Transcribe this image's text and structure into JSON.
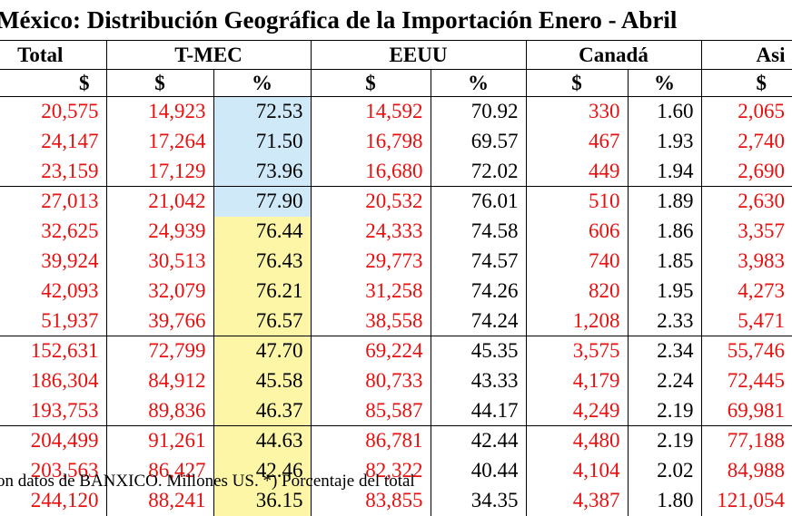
{
  "title": "México: Distribución Geográfica de la Importación Enero - Abril",
  "headers": {
    "total": "Total",
    "tmec": "T-MEC",
    "eeuu": "EEUU",
    "canada": "Canadá",
    "asia": "Asi"
  },
  "subheaders": [
    "$",
    "$",
    "%",
    "$",
    "%",
    "$",
    "%",
    "$"
  ],
  "rows": [
    [
      "20,575",
      "14,923",
      "72.53",
      "14,592",
      "70.92",
      "330",
      "1.60",
      "2,065"
    ],
    [
      "24,147",
      "17,264",
      "71.50",
      "16,798",
      "69.57",
      "467",
      "1.93",
      "2,740"
    ],
    [
      "23,159",
      "17,129",
      "73.96",
      "16,680",
      "72.02",
      "449",
      "1.94",
      "2,690"
    ],
    [
      "27,013",
      "21,042",
      "77.90",
      "20,532",
      "76.01",
      "510",
      "1.89",
      "2,630"
    ],
    [
      "32,625",
      "24,939",
      "76.44",
      "24,333",
      "74.58",
      "606",
      "1.86",
      "3,357"
    ],
    [
      "39,924",
      "30,513",
      "76.43",
      "29,773",
      "74.57",
      "740",
      "1.85",
      "3,983"
    ],
    [
      "42,093",
      "32,079",
      "76.21",
      "31,258",
      "74.26",
      "820",
      "1.95",
      "4,273"
    ],
    [
      "51,937",
      "39,766",
      "76.57",
      "38,558",
      "74.24",
      "1,208",
      "2.33",
      "5,471"
    ],
    [
      "152,631",
      "72,799",
      "47.70",
      "69,224",
      "45.35",
      "3,575",
      "2.34",
      "55,746"
    ],
    [
      "186,304",
      "84,912",
      "45.58",
      "80,733",
      "43.33",
      "4,179",
      "2.24",
      "72,445"
    ],
    [
      "193,753",
      "89,836",
      "46.37",
      "85,587",
      "44.17",
      "4,249",
      "2.19",
      "69,981"
    ],
    [
      "204,499",
      "91,261",
      "44.63",
      "86,781",
      "42.44",
      "4,480",
      "2.19",
      "77,188"
    ],
    [
      "203,563",
      "86,427",
      "42.46",
      "82,322",
      "40.44",
      "4,104",
      "2.02",
      "84,988"
    ],
    [
      "244,120",
      "88,241",
      "36.15",
      "83,855",
      "34.35",
      "4,387",
      "1.80",
      "121,054"
    ]
  ],
  "colors": {
    "money": "#e8100f",
    "blue_cell": "#cfe9f8",
    "yellow_cell": "#fcf6a6"
  },
  "footer": "on datos de BANXICO. Millones US. *) Porcentaje del total"
}
